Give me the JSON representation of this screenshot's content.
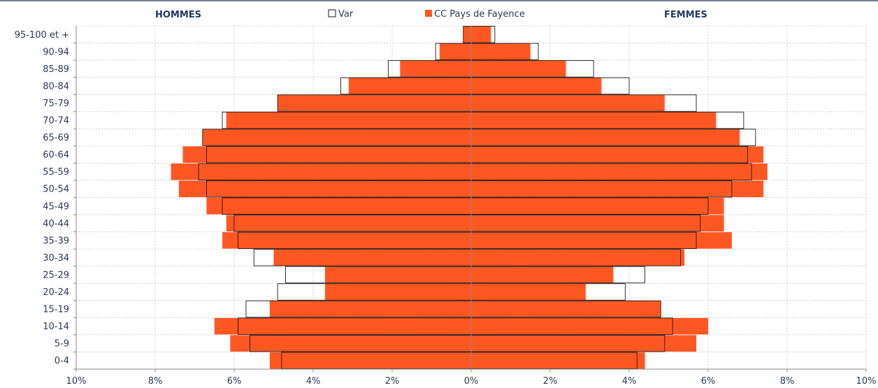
{
  "chart_data": {
    "type": "bar",
    "orientation": "horizontal",
    "subtype": "population-pyramid",
    "title": "",
    "left_label": "HOMMES",
    "right_label": "FEMMES",
    "xlim": [
      -10,
      10
    ],
    "x_ticks": [
      "10%",
      "8%",
      "6%",
      "4%",
      "2%",
      "0%",
      "2%",
      "4%",
      "6%",
      "8%",
      "10%"
    ],
    "grid": true,
    "legend_position": "top-center",
    "categories": [
      "0-4",
      "5-9",
      "10-14",
      "15-19",
      "20-24",
      "25-29",
      "30-34",
      "35-39",
      "40-44",
      "45-49",
      "50-54",
      "55-59",
      "60-64",
      "65-69",
      "70-74",
      "75-79",
      "80-84",
      "85-89",
      "90-94",
      "95-100 et +"
    ],
    "series": [
      {
        "name": "CC Pays de Fayence",
        "style": "filled",
        "color": "#ff5722",
        "men": [
          5.1,
          6.1,
          6.5,
          5.1,
          3.7,
          3.7,
          5.0,
          6.3,
          6.2,
          6.7,
          7.4,
          7.6,
          7.3,
          6.8,
          6.2,
          4.9,
          3.1,
          1.8,
          0.8,
          0.2
        ],
        "women": [
          4.4,
          5.7,
          6.0,
          4.8,
          2.9,
          3.6,
          5.4,
          6.6,
          6.4,
          6.4,
          7.4,
          7.5,
          7.4,
          6.8,
          6.2,
          4.9,
          3.3,
          2.4,
          1.5,
          0.5
        ]
      },
      {
        "name": "Var",
        "style": "outline",
        "color": "#1a1a1a",
        "men": [
          4.8,
          5.6,
          5.9,
          5.7,
          4.9,
          4.7,
          5.5,
          5.9,
          6.0,
          6.3,
          6.7,
          6.9,
          6.7,
          6.8,
          6.3,
          4.9,
          3.3,
          2.1,
          0.9,
          0.2
        ],
        "women": [
          4.2,
          4.9,
          5.1,
          4.8,
          3.9,
          4.4,
          5.3,
          5.7,
          5.8,
          6.0,
          6.6,
          7.1,
          7.0,
          7.2,
          6.9,
          5.7,
          4.0,
          3.1,
          1.7,
          0.6
        ]
      }
    ]
  }
}
